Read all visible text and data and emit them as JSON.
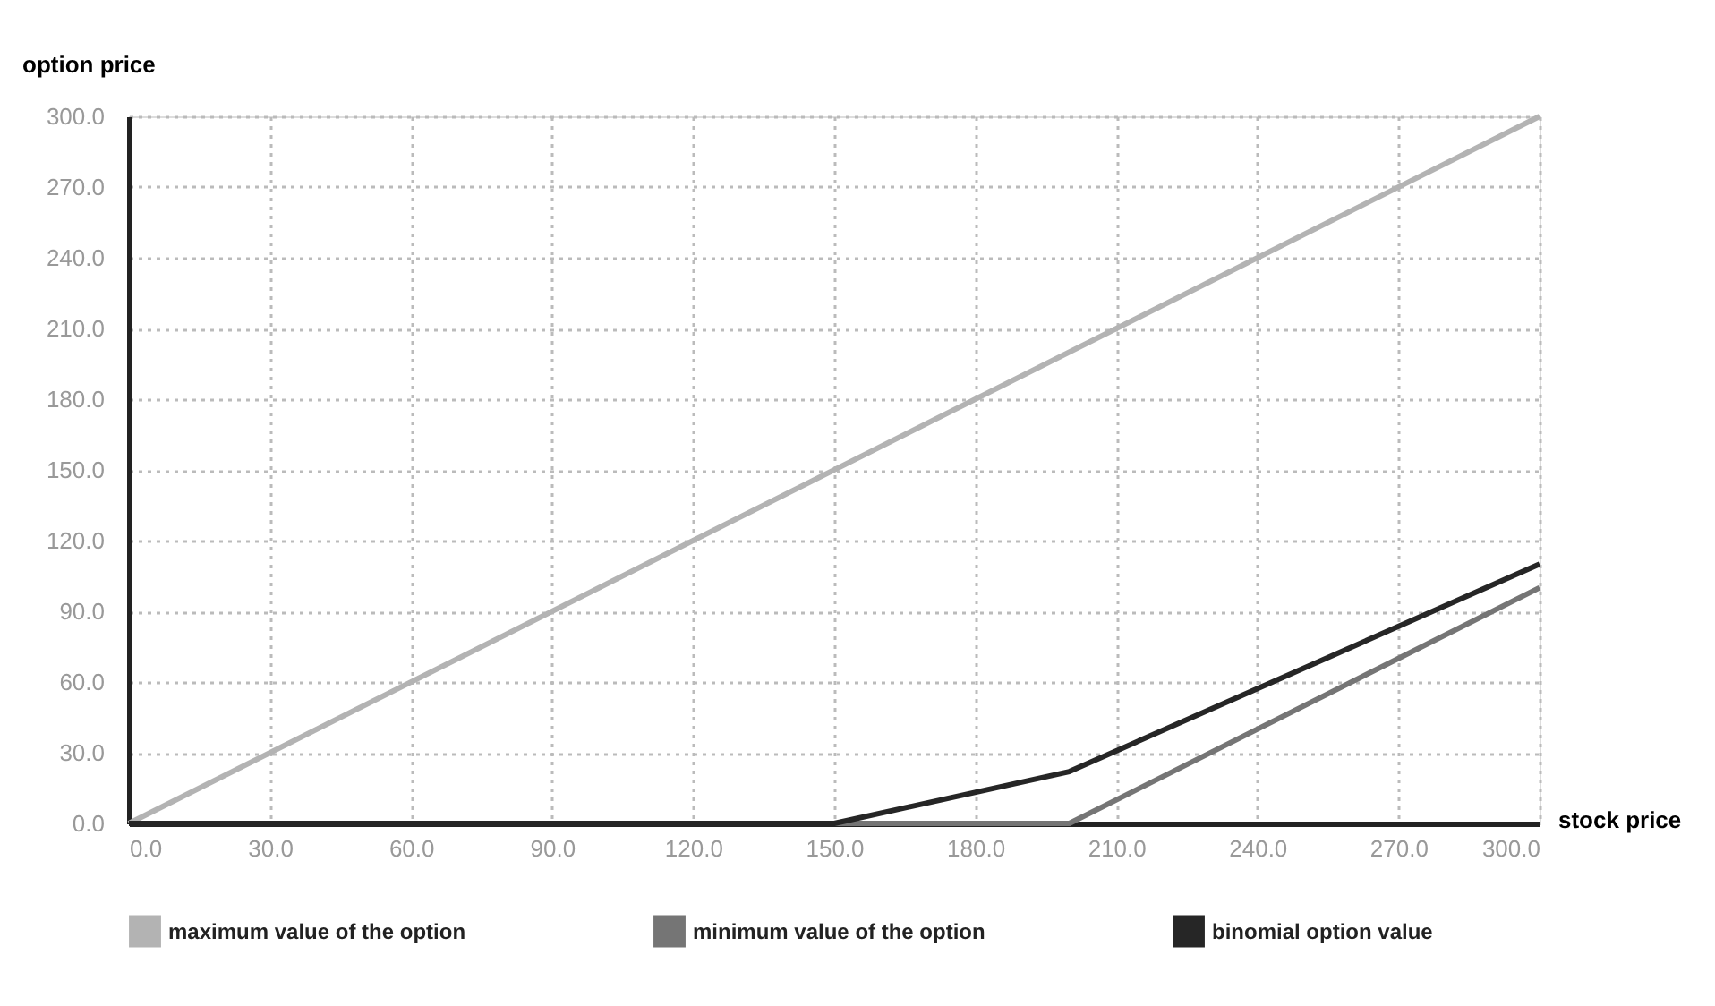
{
  "chart_data": {
    "type": "line",
    "xlabel": "stock price",
    "ylabel": "option price",
    "series": [
      {
        "name": "maximum value of the option",
        "color": "#b3b3b3",
        "x": [
          0,
          300
        ],
        "values": [
          0,
          300
        ]
      },
      {
        "name": "minimum value of the option",
        "color": "#757575",
        "x": [
          0,
          200,
          300
        ],
        "values": [
          0,
          0,
          100
        ]
      },
      {
        "name": "binomial option value",
        "color": "#262626",
        "x": [
          0,
          150,
          200,
          300
        ],
        "values": [
          0,
          0,
          22,
          110
        ]
      }
    ],
    "xlim": [
      0,
      300
    ],
    "xticks": [
      {
        "value": 0,
        "label": "0.0"
      },
      {
        "value": 30,
        "label": "30.0"
      },
      {
        "value": 60,
        "label": "60.0"
      },
      {
        "value": 90,
        "label": "90.0"
      },
      {
        "value": 120,
        "label": "120.0"
      },
      {
        "value": 150,
        "label": "150.0"
      },
      {
        "value": 180,
        "label": "180.0"
      },
      {
        "value": 210,
        "label": "210.0"
      },
      {
        "value": 240,
        "label": "240.0"
      },
      {
        "value": 270,
        "label": "270.0"
      },
      {
        "value": 300,
        "label": "300.0"
      }
    ],
    "ylim": [
      0,
      300
    ],
    "yticks": [
      {
        "value": 0,
        "label": "0.0"
      },
      {
        "value": 30,
        "label": "30.0"
      },
      {
        "value": 60,
        "label": "60.0"
      },
      {
        "value": 90,
        "label": "90.0"
      },
      {
        "value": 120,
        "label": "120.0"
      },
      {
        "value": 150,
        "label": "150.0"
      },
      {
        "value": 180,
        "label": "180.0"
      },
      {
        "value": 210,
        "label": "210.0"
      },
      {
        "value": 240,
        "label": "240.0"
      },
      {
        "value": 270,
        "label": "270.0"
      },
      {
        "value": 300,
        "label": "300.0"
      }
    ],
    "grid": true,
    "legend": "bottom",
    "marker": "none",
    "line_style": "solid"
  }
}
